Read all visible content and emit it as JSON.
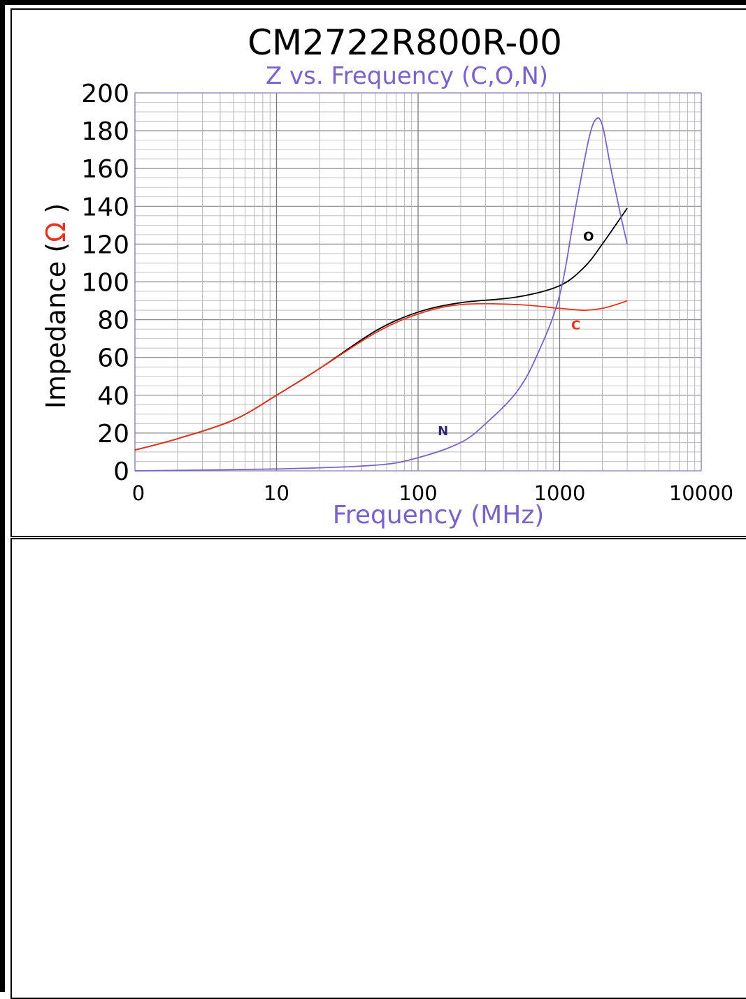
{
  "chart_data": {
    "type": "line",
    "title": "CM2722R800R-00",
    "subtitle": "Z vs. Frequency (C,O,N)",
    "xlabel": "Frequency (MHz)",
    "ylabel_prefix": "Impedance (",
    "ylabel_unit": "Ω",
    "ylabel_suffix": " )",
    "x_scale": "log",
    "x_ticks": [
      "0",
      "10",
      "100",
      "1000",
      "10000"
    ],
    "y_ticks": [
      "0",
      "20",
      "40",
      "60",
      "80",
      "100",
      "120",
      "140",
      "160",
      "180",
      "200"
    ],
    "xlim": [
      1,
      10000
    ],
    "ylim": [
      0,
      200
    ],
    "grid": true,
    "series": [
      {
        "name": "O",
        "color": "#000000",
        "x": [
          1,
          2,
          5,
          10,
          20,
          50,
          100,
          200,
          500,
          1000,
          1500,
          2000,
          3000
        ],
        "y": [
          11,
          17,
          27,
          40,
          54,
          74,
          84,
          89,
          92,
          98,
          108,
          120,
          139
        ]
      },
      {
        "name": "C",
        "color": "#e8331d",
        "x": [
          1,
          2,
          5,
          10,
          20,
          50,
          100,
          200,
          500,
          1000,
          1500,
          2000,
          2500,
          3000
        ],
        "y": [
          11,
          17,
          27,
          40,
          54,
          73,
          83,
          88,
          88,
          86,
          85,
          86,
          88,
          90
        ]
      },
      {
        "name": "N",
        "color": "#7b62c9",
        "x": [
          1,
          10,
          50,
          100,
          200,
          300,
          500,
          700,
          1000,
          1300,
          1600,
          1800,
          2000,
          2300,
          2700,
          3000
        ],
        "y": [
          0,
          1,
          3,
          7,
          15,
          25,
          42,
          62,
          93,
          140,
          175,
          186,
          183,
          160,
          135,
          120
        ]
      }
    ]
  }
}
